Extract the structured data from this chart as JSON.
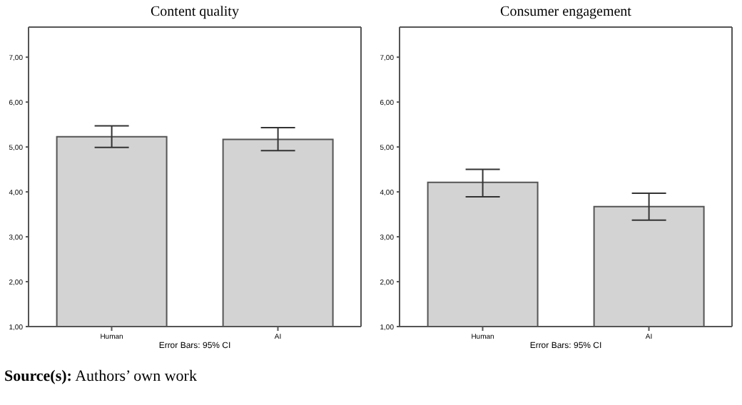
{
  "chart_data": [
    {
      "type": "bar",
      "title": "Content quality",
      "categories": [
        "Human",
        "AI"
      ],
      "values": [
        5.23,
        5.17
      ],
      "errors": [
        [
          4.99,
          5.47
        ],
        [
          4.92,
          5.43
        ]
      ],
      "color": "#d3d3d3",
      "ylim": [
        1,
        7.67
      ],
      "yticks": [
        {
          "value": 1,
          "label": "1,00"
        },
        {
          "value": 2,
          "label": "2,00"
        },
        {
          "value": 3,
          "label": "3,00"
        },
        {
          "value": 4,
          "label": "4,00"
        },
        {
          "value": 5,
          "label": "5,00"
        },
        {
          "value": 6,
          "label": "6,00"
        },
        {
          "value": 7,
          "label": "7,00"
        }
      ],
      "grid": false,
      "legend": false,
      "annotations": [
        "Error Bars: 95% CI",
        "Source(s): Authors’ own work"
      ]
    },
    {
      "type": "bar",
      "title": "Consumer engagement",
      "categories": [
        "Human",
        "AI"
      ],
      "values": [
        4.21,
        3.67
      ],
      "errors": [
        [
          3.89,
          4.5
        ],
        [
          3.37,
          3.97
        ]
      ],
      "color": "#d3d3d3",
      "ylim": [
        1,
        7.67
      ],
      "yticks": [
        {
          "value": 1,
          "label": "1,00"
        },
        {
          "value": 2,
          "label": "2,00"
        },
        {
          "value": 3,
          "label": "3,00"
        },
        {
          "value": 4,
          "label": "4,00"
        },
        {
          "value": 5,
          "label": "5,00"
        },
        {
          "value": 6,
          "label": "6,00"
        },
        {
          "value": 7,
          "label": "7,00"
        }
      ],
      "grid": false,
      "legend": false,
      "annotations": [
        "Error Bars: 95% CI"
      ]
    }
  ]
}
